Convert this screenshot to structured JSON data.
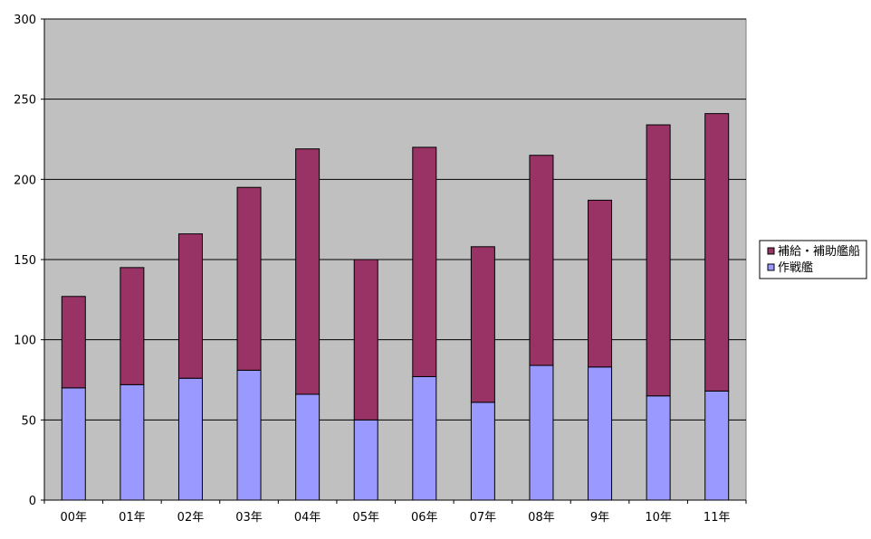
{
  "chart_data": {
    "type": "bar",
    "stacked": true,
    "categories": [
      "00年",
      "01年",
      "02年",
      "03年",
      "04年",
      "05年",
      "06年",
      "07年",
      "08年",
      "9年",
      "10年",
      "11年"
    ],
    "series": [
      {
        "name": "作戦艦",
        "color": "#9999ff",
        "values": [
          70,
          72,
          76,
          81,
          66,
          50,
          77,
          61,
          84,
          83,
          65,
          68
        ]
      },
      {
        "name": "補給・補助艦船",
        "color": "#993366",
        "values": [
          57,
          73,
          90,
          114,
          153,
          100,
          143,
          97,
          131,
          104,
          169,
          173
        ]
      }
    ],
    "yticks": [
      0,
      50,
      100,
      150,
      200,
      250,
      300
    ],
    "ylim": [
      0,
      300
    ],
    "grid": true,
    "plot_background": "#c0c0c0",
    "legend_placement": "right",
    "legend_order": [
      "補給・補助艦船",
      "作戦艦"
    ]
  }
}
